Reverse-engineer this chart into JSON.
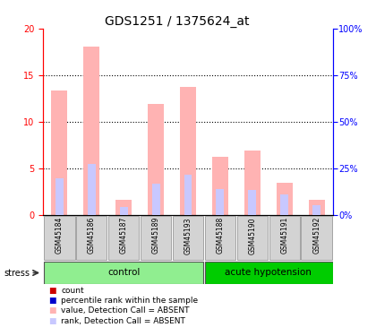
{
  "title": "GDS1251 / 1375624_at",
  "samples": [
    "GSM45184",
    "GSM45186",
    "GSM45187",
    "GSM45189",
    "GSM45193",
    "GSM45188",
    "GSM45190",
    "GSM45191",
    "GSM45192"
  ],
  "value_absent": [
    13.4,
    18.1,
    1.6,
    11.9,
    13.7,
    6.2,
    6.9,
    3.5,
    1.6
  ],
  "rank_absent": [
    19.5,
    27.5,
    4.5,
    17.0,
    21.5,
    14.0,
    13.5,
    11.0,
    5.5
  ],
  "ylim_left": [
    0,
    20
  ],
  "ylim_right": [
    0,
    100
  ],
  "yticks_left": [
    0,
    5,
    10,
    15,
    20
  ],
  "yticks_right": [
    0,
    25,
    50,
    75,
    100
  ],
  "ytick_labels_right": [
    "0%",
    "25%",
    "50%",
    "75%",
    "100%"
  ],
  "color_value_absent": "#ffb3b3",
  "color_rank_absent": "#c8c8ff",
  "color_count": "#cc0000",
  "color_rank": "#0000cc",
  "bg_xticklabel": "#d3d3d3",
  "bg_control": "#90ee90",
  "bg_hypotension": "#00cc00",
  "title_fontsize": 10,
  "tick_fontsize": 7,
  "legend_fontsize": 6.5,
  "control_n": 5,
  "hypo_n": 4
}
